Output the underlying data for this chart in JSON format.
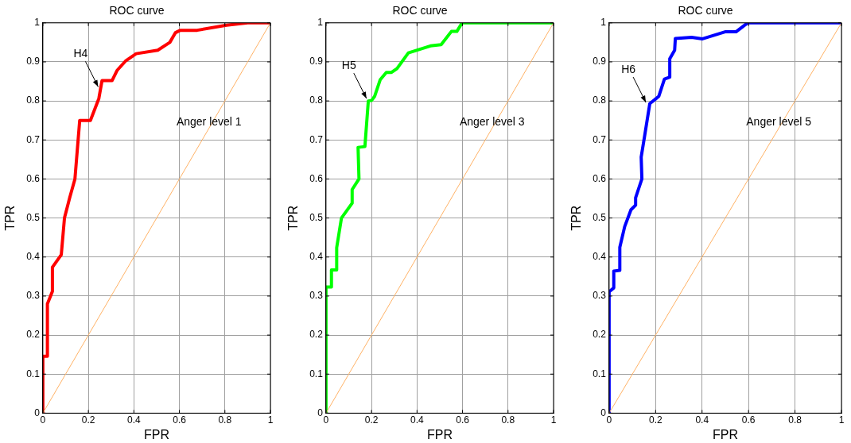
{
  "chart_data": [
    {
      "type": "line",
      "title": "ROC curve",
      "xlabel": "FPR",
      "ylabel": "TPR",
      "xlim": [
        0,
        1
      ],
      "ylim": [
        0,
        1
      ],
      "xticks": [
        0,
        0.2,
        0.4,
        0.6,
        0.8,
        1
      ],
      "yticks": [
        0,
        0.1,
        0.2,
        0.3,
        0.4,
        0.5,
        0.6,
        0.7,
        0.8,
        0.9,
        1
      ],
      "grid": true,
      "legend": false,
      "marker": "none",
      "line_style": "solid",
      "series": [
        {
          "color": "#ff0000",
          "x": [
            0,
            0,
            0.02,
            0.02,
            0.042,
            0.042,
            0.081,
            0.095,
            0.118,
            0.141,
            0.162,
            0.209,
            0.246,
            0.26,
            0.304,
            0.326,
            0.363,
            0.41,
            0.505,
            0.558,
            0.583,
            0.604,
            0.678,
            0.807,
            0.9,
            1
          ],
          "values": [
            0,
            0.146,
            0.146,
            0.28,
            0.312,
            0.374,
            0.406,
            0.5,
            0.552,
            0.6,
            0.75,
            0.75,
            0.806,
            0.852,
            0.852,
            0.878,
            0.902,
            0.921,
            0.93,
            0.95,
            0.975,
            0.981,
            0.981,
            0.994,
            1,
            1
          ]
        },
        {
          "color": "#ffb266",
          "x": [
            0,
            1
          ],
          "values": [
            0,
            1
          ]
        }
      ],
      "annotations": [
        {
          "text": "H4",
          "x": 0.25,
          "y": 0.83
        },
        "Anger level 1"
      ]
    },
    {
      "type": "line",
      "title": "ROC curve",
      "xlabel": "FPR",
      "ylabel": "TPR",
      "xlim": [
        0,
        1
      ],
      "ylim": [
        0,
        1
      ],
      "xticks": [
        0,
        0.2,
        0.4,
        0.6,
        0.8,
        1
      ],
      "yticks": [
        0,
        0.1,
        0.2,
        0.3,
        0.4,
        0.5,
        0.6,
        0.7,
        0.8,
        0.9,
        1
      ],
      "grid": true,
      "legend": false,
      "marker": "none",
      "line_style": "solid",
      "series": [
        {
          "color": "#00ff00",
          "x": [
            0,
            0,
            0.024,
            0.024,
            0.047,
            0.047,
            0.068,
            0.115,
            0.115,
            0.145,
            0.141,
            0.171,
            0.186,
            0.2,
            0.214,
            0.238,
            0.265,
            0.288,
            0.312,
            0.362,
            0.459,
            0.506,
            0.551,
            0.575,
            0.598,
            1
          ],
          "values": [
            0,
            0.323,
            0.323,
            0.367,
            0.367,
            0.424,
            0.5,
            0.538,
            0.573,
            0.6,
            0.681,
            0.683,
            0.8,
            0.801,
            0.812,
            0.854,
            0.873,
            0.873,
            0.883,
            0.923,
            0.941,
            0.944,
            0.978,
            0.978,
            1,
            1
          ]
        },
        {
          "color": "#ffb266",
          "x": [
            0,
            1
          ],
          "values": [
            0,
            1
          ]
        }
      ],
      "annotations": [
        {
          "text": "H5",
          "x": 0.185,
          "y": 0.8
        },
        "Anger level 3"
      ]
    },
    {
      "type": "line",
      "title": "ROC curve",
      "xlabel": "FPR",
      "ylabel": "TPR",
      "xlim": [
        0,
        1
      ],
      "ylim": [
        0,
        1
      ],
      "xticks": [
        0,
        0.2,
        0.4,
        0.6,
        0.8,
        1
      ],
      "yticks": [
        0,
        0.1,
        0.2,
        0.3,
        0.4,
        0.5,
        0.6,
        0.7,
        0.8,
        0.9,
        1
      ],
      "grid": true,
      "legend": false,
      "marker": "none",
      "line_style": "solid",
      "series": [
        {
          "color": "#0000ff",
          "x": [
            0,
            0,
            0.02,
            0.02,
            0.046,
            0.046,
            0.067,
            0.094,
            0.114,
            0.114,
            0.141,
            0.138,
            0.153,
            0.175,
            0.196,
            0.214,
            0.238,
            0.261,
            0.261,
            0.282,
            0.285,
            0.355,
            0.402,
            0.499,
            0.546,
            0.596,
            1
          ],
          "values": [
            0,
            0.311,
            0.321,
            0.364,
            0.366,
            0.425,
            0.478,
            0.521,
            0.533,
            0.552,
            0.6,
            0.656,
            0.711,
            0.793,
            0.803,
            0.812,
            0.856,
            0.861,
            0.908,
            0.93,
            0.96,
            0.963,
            0.959,
            0.977,
            0.977,
            1,
            1
          ]
        },
        {
          "color": "#ffb266",
          "x": [
            0,
            1
          ],
          "values": [
            0,
            1
          ]
        }
      ],
      "annotations": [
        {
          "text": "H6",
          "x": 0.165,
          "y": 0.79
        },
        "Anger level 5"
      ]
    }
  ]
}
